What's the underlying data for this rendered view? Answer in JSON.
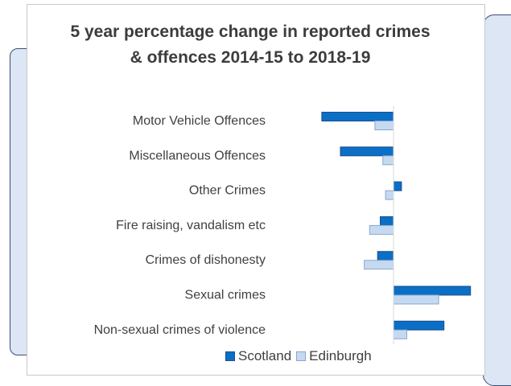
{
  "chart_data": {
    "type": "bar",
    "orientation": "horizontal",
    "title": "5 year percentage change in reported crimes & offences 2014-15 to 2018-19",
    "categories": [
      "Motor Vehicle Offences",
      "Miscellaneous Offences",
      "Other Crimes",
      "Fire raising, vandalism etc",
      "Crimes of dishonesty",
      "Sexual crimes",
      "Non-sexual crimes of violence"
    ],
    "series": [
      {
        "name": "Scotland",
        "color": "#0b6fc5",
        "values": [
          -27,
          -20,
          3,
          -5,
          -6,
          29,
          19
        ]
      },
      {
        "name": "Edinburgh",
        "color": "#c5d9f1",
        "values": [
          -7,
          -4,
          -3,
          -9,
          -11,
          17,
          5
        ]
      }
    ],
    "xlim": [
      -30,
      30
    ],
    "grid": false,
    "legend": "bottom"
  }
}
